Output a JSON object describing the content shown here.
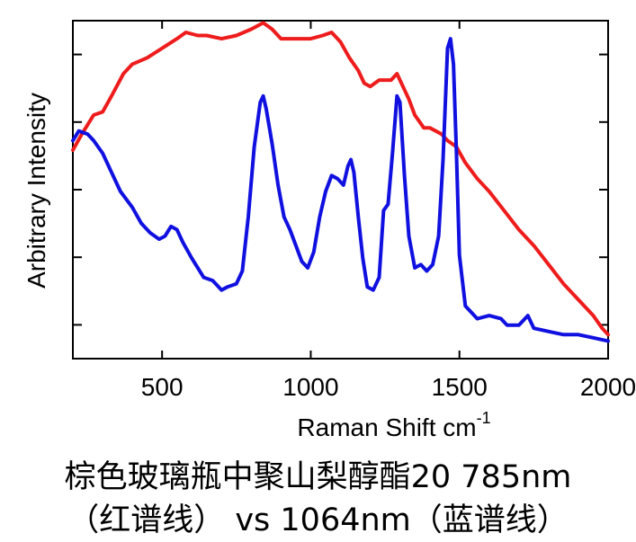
{
  "chart_data": {
    "type": "line",
    "xlabel": "Raman Shift cm",
    "xlabel_superscript": "-1",
    "ylabel": "Arbitrary Intensity",
    "xlim": [
      200,
      2000
    ],
    "ylim": [
      0,
      1
    ],
    "x_ticks": [
      500,
      1000,
      1500,
      2000
    ],
    "x_tick_labels": [
      "500",
      "1000",
      "1500",
      "2000"
    ],
    "y_tick_count": 5,
    "y_tick_labels_shown": false,
    "grid": false,
    "legend": "none",
    "series": [
      {
        "color": "#ee1c1c",
        "points": [
          [
            200,
            0.63
          ],
          [
            230,
            0.68
          ],
          [
            270,
            0.74
          ],
          [
            300,
            0.75
          ],
          [
            330,
            0.8
          ],
          [
            370,
            0.87
          ],
          [
            400,
            0.9
          ],
          [
            450,
            0.92
          ],
          [
            500,
            0.95
          ],
          [
            550,
            0.98
          ],
          [
            580,
            1.0
          ],
          [
            620,
            0.99
          ],
          [
            650,
            0.99
          ],
          [
            700,
            0.98
          ],
          [
            750,
            0.99
          ],
          [
            800,
            1.01
          ],
          [
            840,
            1.03
          ],
          [
            870,
            1.01
          ],
          [
            900,
            0.98
          ],
          [
            950,
            0.98
          ],
          [
            1000,
            0.98
          ],
          [
            1040,
            0.99
          ],
          [
            1070,
            1.0
          ],
          [
            1100,
            0.97
          ],
          [
            1130,
            0.92
          ],
          [
            1160,
            0.88
          ],
          [
            1180,
            0.84
          ],
          [
            1200,
            0.83
          ],
          [
            1230,
            0.85
          ],
          [
            1250,
            0.85
          ],
          [
            1270,
            0.85
          ],
          [
            1290,
            0.87
          ],
          [
            1310,
            0.83
          ],
          [
            1330,
            0.79
          ],
          [
            1350,
            0.74
          ],
          [
            1380,
            0.7
          ],
          [
            1400,
            0.7
          ],
          [
            1420,
            0.69
          ],
          [
            1440,
            0.68
          ],
          [
            1460,
            0.66
          ],
          [
            1490,
            0.64
          ],
          [
            1520,
            0.59
          ],
          [
            1560,
            0.54
          ],
          [
            1600,
            0.5
          ],
          [
            1650,
            0.44
          ],
          [
            1700,
            0.38
          ],
          [
            1750,
            0.33
          ],
          [
            1800,
            0.27
          ],
          [
            1850,
            0.21
          ],
          [
            1900,
            0.16
          ],
          [
            1950,
            0.11
          ],
          [
            1980,
            0.07
          ],
          [
            2000,
            0.05
          ]
        ]
      },
      {
        "color": "#1010e0",
        "points": [
          [
            200,
            0.66
          ],
          [
            220,
            0.69
          ],
          [
            250,
            0.68
          ],
          [
            270,
            0.66
          ],
          [
            300,
            0.62
          ],
          [
            330,
            0.56
          ],
          [
            360,
            0.5
          ],
          [
            400,
            0.45
          ],
          [
            430,
            0.4
          ],
          [
            460,
            0.37
          ],
          [
            490,
            0.35
          ],
          [
            510,
            0.36
          ],
          [
            530,
            0.39
          ],
          [
            550,
            0.38
          ],
          [
            570,
            0.34
          ],
          [
            600,
            0.29
          ],
          [
            640,
            0.23
          ],
          [
            670,
            0.22
          ],
          [
            700,
            0.19
          ],
          [
            720,
            0.2
          ],
          [
            750,
            0.21
          ],
          [
            770,
            0.25
          ],
          [
            790,
            0.42
          ],
          [
            810,
            0.64
          ],
          [
            830,
            0.78
          ],
          [
            840,
            0.8
          ],
          [
            850,
            0.76
          ],
          [
            870,
            0.65
          ],
          [
            890,
            0.52
          ],
          [
            910,
            0.42
          ],
          [
            930,
            0.38
          ],
          [
            950,
            0.33
          ],
          [
            970,
            0.28
          ],
          [
            990,
            0.26
          ],
          [
            1010,
            0.31
          ],
          [
            1030,
            0.42
          ],
          [
            1050,
            0.5
          ],
          [
            1070,
            0.55
          ],
          [
            1090,
            0.54
          ],
          [
            1110,
            0.52
          ],
          [
            1125,
            0.58
          ],
          [
            1135,
            0.6
          ],
          [
            1145,
            0.56
          ],
          [
            1160,
            0.42
          ],
          [
            1175,
            0.29
          ],
          [
            1190,
            0.2
          ],
          [
            1210,
            0.19
          ],
          [
            1230,
            0.23
          ],
          [
            1245,
            0.44
          ],
          [
            1260,
            0.46
          ],
          [
            1275,
            0.62
          ],
          [
            1290,
            0.8
          ],
          [
            1300,
            0.78
          ],
          [
            1315,
            0.55
          ],
          [
            1330,
            0.36
          ],
          [
            1350,
            0.26
          ],
          [
            1370,
            0.27
          ],
          [
            1390,
            0.25
          ],
          [
            1410,
            0.27
          ],
          [
            1430,
            0.36
          ],
          [
            1445,
            0.6
          ],
          [
            1460,
            0.95
          ],
          [
            1470,
            0.98
          ],
          [
            1480,
            0.9
          ],
          [
            1490,
            0.62
          ],
          [
            1500,
            0.3
          ],
          [
            1520,
            0.14
          ],
          [
            1560,
            0.1
          ],
          [
            1600,
            0.11
          ],
          [
            1640,
            0.1
          ],
          [
            1660,
            0.08
          ],
          [
            1700,
            0.08
          ],
          [
            1730,
            0.11
          ],
          [
            1750,
            0.07
          ],
          [
            1800,
            0.06
          ],
          [
            1850,
            0.05
          ],
          [
            1900,
            0.05
          ],
          [
            1950,
            0.04
          ],
          [
            2000,
            0.03
          ]
        ]
      }
    ]
  },
  "caption": {
    "line1": "棕色玻璃瓶中聚山梨醇酯20 785nm",
    "line2": "（红谱线） vs 1064nm（蓝谱线）"
  }
}
